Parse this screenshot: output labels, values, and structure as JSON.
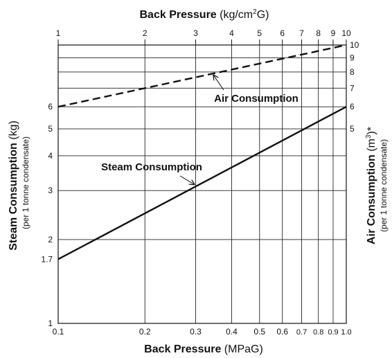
{
  "chart_data": {
    "type": "line",
    "x_scale": "log",
    "y_scale": "log",
    "grid": true,
    "xlim": [
      0.1,
      1.0
    ],
    "ylim": [
      1,
      10
    ],
    "bottom_axis": {
      "title_bold": "Back Pressure",
      "title_unit": " (MPaG)",
      "ticks": [
        0.1,
        0.2,
        0.3,
        0.4,
        0.5,
        0.6,
        0.7,
        0.8,
        0.9,
        1.0
      ],
      "tick_labels": [
        "0.1",
        "0.2",
        "0.3",
        "0.4",
        "0.5",
        "0.6",
        "0.7",
        "0.8",
        "0.9",
        "1.0"
      ]
    },
    "top_axis": {
      "title_bold": "Back Pressure",
      "title_unit_pre": " (kg/cm",
      "title_unit_sup": "2",
      "title_unit_post": "G)",
      "ticks": [
        1,
        2,
        3,
        4,
        5,
        6,
        7,
        8,
        9,
        10
      ],
      "tick_labels": [
        "1",
        "2",
        "3",
        "4",
        "5",
        "6",
        "7",
        "8",
        "9",
        "10"
      ]
    },
    "left_axis": {
      "title_bold": "Steam Consumption",
      "title_unit": " (kg)",
      "subtitle": "(per 1 tonne condensate)",
      "ticks": [
        1,
        1.7,
        2,
        3,
        4,
        5,
        6
      ],
      "tick_labels": [
        "1",
        "1.7",
        "2",
        "3",
        "4",
        "5",
        "6"
      ]
    },
    "right_axis": {
      "title_bold": "Air Consumption",
      "title_unit_pre": " (m",
      "title_unit_sup": "3",
      "title_unit_post": ")*",
      "subtitle": "(per 1 tonne condensate)",
      "ticks": [
        5,
        6,
        7,
        8,
        9,
        10
      ],
      "tick_labels": [
        "5",
        "6",
        "7",
        "8",
        "9",
        "10"
      ]
    },
    "gridlines_y": [
      1,
      2,
      3,
      4,
      5,
      6,
      7,
      8,
      9,
      10
    ],
    "series": [
      {
        "name": "Steam Consumption",
        "style": "solid",
        "x": [
          0.1,
          1.0
        ],
        "y": [
          1.7,
          6
        ],
        "annotation_at_x": 0.3
      },
      {
        "name": "Air Consumption",
        "style": "dashed",
        "x": [
          0.1,
          1.0
        ],
        "y": [
          6,
          10
        ],
        "annotation_at_x": 0.35
      }
    ]
  }
}
